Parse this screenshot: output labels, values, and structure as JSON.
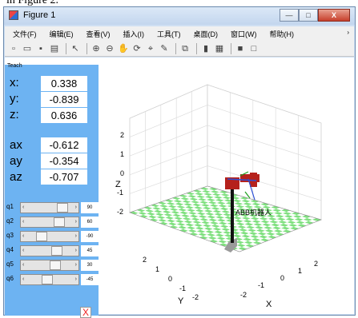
{
  "caption": "in Figure 2.",
  "window": {
    "title": "Figure 1",
    "buttons": {
      "minimize": "—",
      "maximize": "□",
      "close": "X"
    }
  },
  "menu": [
    "文件(F)",
    "编辑(E)",
    "查看(V)",
    "插入(I)",
    "工具(T)",
    "桌面(D)",
    "窗口(W)",
    "帮助(H)"
  ],
  "menu_more": "›",
  "toolbar_icons": [
    "new-icon",
    "open-icon",
    "save-icon",
    "print-icon",
    "sep",
    "pointer-icon",
    "sep",
    "zoom-in-icon",
    "zoom-out-icon",
    "pan-icon",
    "rotate-icon",
    "data-cursor-icon",
    "brush-icon",
    "sep",
    "link-icon",
    "sep",
    "colorbar-icon",
    "legend-icon",
    "sep",
    "hide-plot-tools-icon",
    "show-plot-tools-icon"
  ],
  "panel": {
    "title": "Teach",
    "position": [
      {
        "label": "x:",
        "value": "0.338"
      },
      {
        "label": "y:",
        "value": "-0.839"
      },
      {
        "label": "z:",
        "value": "0.636"
      }
    ],
    "orientation": [
      {
        "label": "ax",
        "value": "-0.612"
      },
      {
        "label": "ay",
        "value": "-0.354"
      },
      {
        "label": "az",
        "value": "-0.707"
      }
    ],
    "sliders": [
      {
        "label": "q1",
        "value": "90",
        "fraction": 0.75
      },
      {
        "label": "q2",
        "value": "60",
        "fraction": 0.67
      },
      {
        "label": "q3",
        "value": "-90",
        "fraction": 0.25
      },
      {
        "label": "q4",
        "value": "45",
        "fraction": 0.62
      },
      {
        "label": "q5",
        "value": "30",
        "fraction": 0.58
      },
      {
        "label": "q6",
        "value": "-45",
        "fraction": 0.38
      }
    ],
    "slider_left_arrow": "‹",
    "slider_right_arrow": "›",
    "close_label": "X"
  },
  "plot": {
    "axis_labels": {
      "x": "X",
      "y": "Y",
      "z": "Z"
    },
    "z_ticks": [
      "2",
      "1",
      "0",
      "-1",
      "-2"
    ],
    "y_ticks": [
      "2",
      "1",
      "0",
      "-1",
      "-2"
    ],
    "x_ticks": [
      "-2",
      "-1",
      "0",
      "1",
      "2"
    ],
    "robot_label": "ABB机器人",
    "floor_colors": [
      "#7fe07f",
      "#ffffff"
    ],
    "robot_color": "#b5211c"
  }
}
